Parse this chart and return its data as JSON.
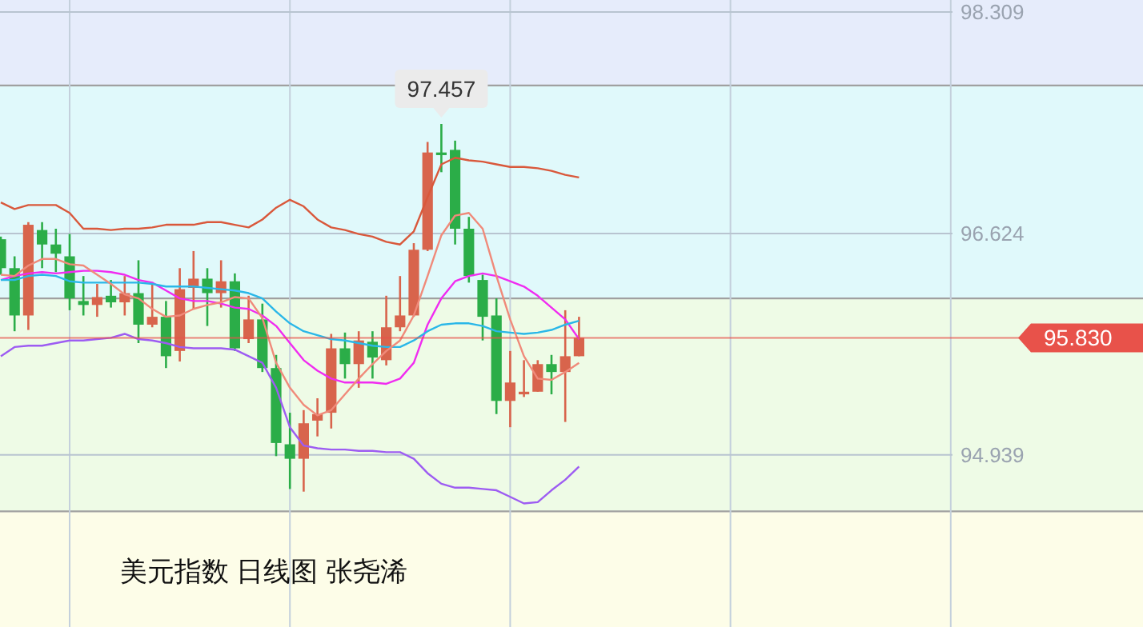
{
  "chart_data": {
    "type": "candlestick",
    "title": "美元指数  日线图 张尧浠",
    "categories": [
      null,
      null,
      null,
      null,
      null,
      null,
      null,
      null,
      null,
      null,
      null,
      null,
      null,
      null,
      null,
      null,
      null,
      null,
      null,
      null,
      null,
      null,
      null,
      null,
      null,
      null,
      null,
      null,
      null,
      null,
      null,
      null,
      null,
      null,
      null,
      null,
      null,
      null,
      null,
      null,
      null,
      null,
      null
    ],
    "ohlc": [
      [
        96.58,
        96.6,
        96.31,
        96.36
      ],
      [
        96.36,
        96.45,
        95.88,
        96.0
      ],
      [
        96.0,
        96.71,
        95.89,
        96.69
      ],
      [
        96.65,
        96.71,
        96.36,
        96.54
      ],
      [
        96.54,
        96.66,
        96.33,
        96.47
      ],
      [
        96.45,
        96.62,
        96.04,
        96.13
      ],
      [
        96.11,
        96.3,
        96.0,
        96.08
      ],
      [
        96.08,
        96.24,
        95.99,
        96.14
      ],
      [
        96.15,
        96.27,
        96.06,
        96.1
      ],
      [
        96.1,
        96.3,
        96.0,
        96.17
      ],
      [
        96.17,
        96.42,
        95.79,
        95.93
      ],
      [
        95.93,
        96.24,
        95.91,
        95.99
      ],
      [
        95.99,
        96.11,
        95.6,
        95.69
      ],
      [
        95.73,
        96.36,
        95.65,
        96.2
      ],
      [
        96.21,
        96.49,
        96.05,
        96.28
      ],
      [
        96.28,
        96.36,
        95.92,
        96.17
      ],
      [
        96.17,
        96.42,
        96.06,
        96.26
      ],
      [
        96.26,
        96.32,
        95.73,
        95.75
      ],
      [
        95.82,
        96.15,
        95.79,
        95.97
      ],
      [
        95.97,
        96.09,
        95.57,
        95.6
      ],
      [
        95.6,
        95.7,
        94.93,
        95.03
      ],
      [
        95.02,
        95.26,
        94.68,
        94.91
      ],
      [
        94.91,
        95.28,
        94.66,
        95.18
      ],
      [
        95.2,
        95.37,
        95.08,
        95.25
      ],
      [
        95.26,
        95.86,
        95.14,
        95.75
      ],
      [
        95.75,
        95.87,
        95.52,
        95.63
      ],
      [
        95.63,
        95.88,
        95.45,
        95.81
      ],
      [
        95.8,
        95.88,
        95.52,
        95.68
      ],
      [
        95.66,
        96.15,
        95.62,
        95.91
      ],
      [
        95.91,
        96.3,
        95.88,
        96.0
      ],
      [
        96.0,
        96.55,
        95.99,
        96.5
      ],
      [
        96.5,
        97.32,
        96.49,
        97.24
      ],
      [
        97.24,
        97.457,
        97.09,
        97.22
      ],
      [
        97.26,
        97.33,
        96.54,
        96.66
      ],
      [
        96.66,
        96.75,
        96.25,
        96.3
      ],
      [
        96.27,
        96.31,
        95.81,
        95.99
      ],
      [
        96.0,
        96.13,
        95.25,
        95.35
      ],
      [
        95.35,
        95.73,
        95.15,
        95.49
      ],
      [
        95.4,
        95.66,
        95.38,
        95.42
      ],
      [
        95.42,
        95.66,
        95.42,
        95.63
      ],
      [
        95.63,
        95.7,
        95.4,
        95.57
      ],
      [
        95.57,
        96.04,
        95.19,
        95.69
      ],
      [
        95.69,
        95.99,
        95.69,
        95.83
      ]
    ],
    "colors": [
      "#2bad48",
      "#2bad48",
      "#d8644c",
      "#2bad48",
      "#2bad48",
      "#2bad48",
      "#2bad48",
      "#d8644c",
      "#2bad48",
      "#d8644c",
      "#2bad48",
      "#d8644c",
      "#2bad48",
      "#d8644c",
      "#d8644c",
      "#2bad48",
      "#d8644c",
      "#2bad48",
      "#d8644c",
      "#2bad48",
      "#2bad48",
      "#2bad48",
      "#d8644c",
      "#d8644c",
      "#d8644c",
      "#2bad48",
      "#d8644c",
      "#2bad48",
      "#d8644c",
      "#d8644c",
      "#d8644c",
      "#d8644c",
      "#2bad48",
      "#2bad48",
      "#2bad48",
      "#2bad48",
      "#2bad48",
      "#d8644c",
      "#d8644c",
      "#d8644c",
      "#2bad48",
      "#d8644c",
      "#d8644c"
    ],
    "series": [
      {
        "type": "line",
        "color": "#d9583b",
        "values": [
          96.86,
          96.81,
          96.84,
          96.84,
          96.84,
          96.78,
          96.66,
          96.66,
          96.65,
          96.66,
          96.66,
          96.67,
          96.69,
          96.69,
          96.69,
          96.71,
          96.71,
          96.69,
          96.67,
          96.73,
          96.82,
          96.88,
          96.83,
          96.73,
          96.67,
          96.65,
          96.62,
          96.6,
          96.56,
          96.54,
          96.64,
          96.9,
          97.15,
          97.2,
          97.18,
          97.17,
          97.15,
          97.13,
          97.13,
          97.12,
          97.1,
          97.07,
          97.05
        ]
      },
      {
        "type": "line",
        "color": "#9d5cf2",
        "values": [
          95.69,
          95.76,
          95.77,
          95.77,
          95.79,
          95.81,
          95.81,
          95.82,
          95.83,
          95.86,
          95.82,
          95.81,
          95.79,
          95.76,
          95.75,
          95.75,
          95.75,
          95.74,
          95.69,
          95.64,
          95.45,
          95.15,
          95.01,
          94.99,
          94.98,
          94.98,
          94.97,
          94.97,
          94.96,
          94.96,
          94.91,
          94.8,
          94.72,
          94.69,
          94.69,
          94.68,
          94.67,
          94.62,
          94.57,
          94.58,
          94.67,
          94.75,
          94.85
        ]
      },
      {
        "type": "line",
        "color": "#f02cf0",
        "values": [
          96.27,
          96.3,
          96.32,
          96.33,
          96.32,
          96.33,
          96.34,
          96.34,
          96.33,
          96.31,
          96.27,
          96.25,
          96.19,
          96.13,
          96.11,
          96.11,
          96.09,
          96.06,
          96.05,
          96.0,
          95.92,
          95.79,
          95.66,
          95.58,
          95.52,
          95.49,
          95.49,
          95.49,
          95.48,
          95.52,
          95.64,
          95.93,
          96.13,
          96.26,
          96.3,
          96.32,
          96.3,
          96.26,
          96.22,
          96.15,
          96.06,
          95.97,
          95.82
        ]
      },
      {
        "type": "line",
        "color": "#2ab7e8",
        "values": [
          96.27,
          96.27,
          96.3,
          96.31,
          96.3,
          96.26,
          96.25,
          96.25,
          96.25,
          96.25,
          96.25,
          96.24,
          96.22,
          96.22,
          96.22,
          96.21,
          96.2,
          96.19,
          96.17,
          96.13,
          96.03,
          95.94,
          95.88,
          95.85,
          95.82,
          95.81,
          95.79,
          95.77,
          95.76,
          95.76,
          95.81,
          95.88,
          95.93,
          95.94,
          95.94,
          95.92,
          95.88,
          95.87,
          95.86,
          95.87,
          95.89,
          95.93,
          95.96
        ]
      },
      {
        "type": "line",
        "color": "#f08a7a",
        "values": [
          96.31,
          96.3,
          96.38,
          96.43,
          96.43,
          96.39,
          96.38,
          96.31,
          96.24,
          96.16,
          96.13,
          96.05,
          95.99,
          96.0,
          96.05,
          96.08,
          96.1,
          96.14,
          96.13,
          95.98,
          95.64,
          95.45,
          95.32,
          95.24,
          95.28,
          95.4,
          95.52,
          95.63,
          95.73,
          95.81,
          96.0,
          96.3,
          96.61,
          96.76,
          96.78,
          96.66,
          96.3,
          95.97,
          95.69,
          95.52,
          95.51,
          95.57,
          95.64
        ]
      }
    ],
    "ylim": [
      93.63,
      98.4
    ],
    "yticks": [
      98.309,
      96.624,
      94.939
    ],
    "grid": true,
    "tick_labels": "y",
    "bands": [
      {
        "axis": "y",
        "from": 97.75,
        "to": 98.4,
        "color": "#e6ecfb"
      },
      {
        "axis": "y",
        "from": 96.13,
        "to": 97.75,
        "color": "#e0f9fb"
      },
      {
        "axis": "y",
        "from": 94.51,
        "to": 96.13,
        "color": "#eefbe6"
      },
      {
        "axis": "y",
        "from": 93.63,
        "to": 94.51,
        "color": "#fdfde8"
      }
    ],
    "ref_lines": [
      {
        "axis": "y",
        "value": 95.83,
        "label": "95.830",
        "color": "#e8524a"
      }
    ],
    "annotations": [
      {
        "text": "97.457",
        "y": 97.457
      }
    ]
  }
}
